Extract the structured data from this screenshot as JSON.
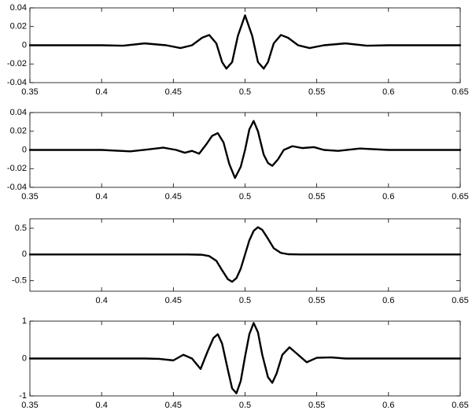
{
  "chart_data": [
    {
      "type": "line",
      "xlim": [
        0.35,
        0.65
      ],
      "ylim": [
        -0.04,
        0.04
      ],
      "xticks": [
        0.35,
        0.4,
        0.45,
        0.5,
        0.55,
        0.6,
        0.65
      ],
      "yticks": [
        -0.04,
        -0.02,
        0,
        0.02,
        0.04
      ],
      "color": "#000000",
      "x": [
        0.35,
        0.4,
        0.415,
        0.43,
        0.445,
        0.455,
        0.463,
        0.47,
        0.475,
        0.48,
        0.484,
        0.487,
        0.491,
        0.495,
        0.5,
        0.505,
        0.509,
        0.513,
        0.516,
        0.52,
        0.525,
        0.53,
        0.537,
        0.545,
        0.555,
        0.57,
        0.585,
        0.6,
        0.65
      ],
      "values": [
        0,
        0,
        -0.0005,
        0.002,
        0,
        -0.003,
        0,
        0.008,
        0.011,
        0.002,
        -0.018,
        -0.025,
        -0.018,
        0.01,
        0.032,
        0.01,
        -0.018,
        -0.025,
        -0.018,
        0.002,
        0.011,
        0.008,
        0,
        -0.003,
        0,
        0.002,
        -0.0005,
        0,
        0
      ]
    },
    {
      "type": "line",
      "xlim": [
        0.35,
        0.65
      ],
      "ylim": [
        -0.04,
        0.04
      ],
      "xticks": [
        0.35,
        0.4,
        0.45,
        0.5,
        0.55,
        0.6,
        0.65
      ],
      "yticks": [
        -0.04,
        -0.02,
        0,
        0.02,
        0.04
      ],
      "color": "#000000",
      "x": [
        0.35,
        0.4,
        0.42,
        0.432,
        0.443,
        0.452,
        0.458,
        0.463,
        0.468,
        0.473,
        0.477,
        0.481,
        0.485,
        0.489,
        0.493,
        0.497,
        0.5,
        0.503,
        0.506,
        0.509,
        0.513,
        0.516,
        0.519,
        0.523,
        0.527,
        0.533,
        0.54,
        0.548,
        0.555,
        0.565,
        0.58,
        0.6,
        0.65
      ],
      "values": [
        0,
        0,
        -0.0015,
        0.0005,
        0.0025,
        0,
        -0.003,
        -0.001,
        -0.004,
        0.006,
        0.015,
        0.018,
        0.008,
        -0.015,
        -0.03,
        -0.018,
        0,
        0.022,
        0.031,
        0.02,
        -0.005,
        -0.014,
        -0.017,
        -0.01,
        0,
        0.004,
        0.002,
        0.003,
        0,
        -0.001,
        0.0015,
        0,
        0
      ]
    },
    {
      "type": "line",
      "xlim": [
        0.35,
        0.65
      ],
      "ylim": [
        -0.7,
        0.68
      ],
      "xticks": [
        0.4,
        0.45,
        0.5,
        0.55,
        0.6,
        0.65
      ],
      "yticks": [
        -0.5,
        0,
        0.5
      ],
      "color": "#000000",
      "x": [
        0.35,
        0.46,
        0.47,
        0.475,
        0.48,
        0.484,
        0.488,
        0.491,
        0.494,
        0.497,
        0.5,
        0.503,
        0.506,
        0.509,
        0.512,
        0.516,
        0.52,
        0.525,
        0.53,
        0.54,
        0.65
      ],
      "values": [
        0,
        0,
        -0.005,
        -0.03,
        -0.12,
        -0.3,
        -0.47,
        -0.52,
        -0.45,
        -0.27,
        0,
        0.27,
        0.45,
        0.52,
        0.47,
        0.3,
        0.12,
        0.03,
        0.005,
        0,
        0
      ]
    },
    {
      "type": "line",
      "xlim": [
        0.35,
        0.65
      ],
      "ylim": [
        -1,
        1
      ],
      "xticks": [
        0.35,
        0.4,
        0.45,
        0.5,
        0.55,
        0.6,
        0.65
      ],
      "yticks": [
        -1,
        0,
        1
      ],
      "color": "#000000",
      "x": [
        0.35,
        0.43,
        0.44,
        0.45,
        0.457,
        0.463,
        0.469,
        0.474,
        0.478,
        0.481,
        0.484,
        0.488,
        0.491,
        0.494,
        0.497,
        0.5,
        0.503,
        0.506,
        0.509,
        0.512,
        0.516,
        0.519,
        0.522,
        0.526,
        0.531,
        0.537,
        0.543,
        0.55,
        0.56,
        0.57,
        0.65
      ],
      "values": [
        0,
        0,
        -0.01,
        -0.05,
        0.1,
        0,
        -0.28,
        0.2,
        0.55,
        0.65,
        0.4,
        -0.3,
        -0.8,
        -0.93,
        -0.6,
        0.05,
        0.65,
        0.95,
        0.7,
        0.1,
        -0.5,
        -0.65,
        -0.4,
        0.1,
        0.3,
        0.1,
        -0.1,
        0.02,
        0.03,
        0,
        0
      ]
    }
  ]
}
